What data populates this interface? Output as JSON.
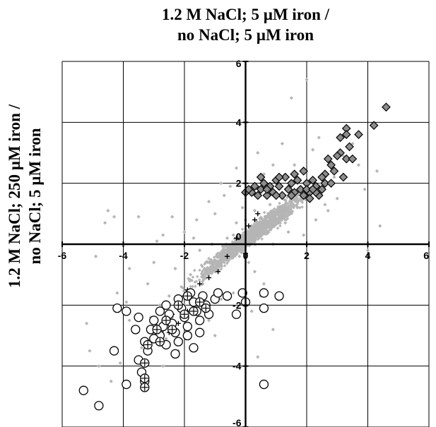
{
  "chart_data": {
    "type": "scatter",
    "title": [
      "1.2 M NaCl; 5 µM iron /",
      "no NaCl; 5 µM iron"
    ],
    "ylabel": [
      "1.2 M NaCl; 250 µM iron /",
      "no NaCl; 5 µM iron"
    ],
    "xlim": [
      -6,
      6
    ],
    "ylim": [
      -6,
      6
    ],
    "x_ticks": [
      "-6",
      "-4",
      "-2",
      "0",
      "2",
      "4",
      "6"
    ],
    "y_ticks": [
      "6",
      "4",
      "2",
      "0",
      "-2",
      "-4",
      "-6"
    ],
    "grid": true,
    "colors": {
      "background_cloud": "#b5b5b5",
      "diamond_fill": "#8c8c8c",
      "marker_stroke": "#000000"
    },
    "series": [
      {
        "marker": "small-gray-diamond",
        "points": [
          [
            -4.5,
            1.1
          ],
          [
            -4.3,
            0.9
          ],
          [
            -4.6,
            0.7
          ],
          [
            -3.5,
            0.9
          ],
          [
            -4.9,
            -0.4
          ],
          [
            -5.2,
            -2.6
          ],
          [
            -5.1,
            -3.5
          ],
          [
            -4.4,
            -4.5
          ],
          [
            -3.9,
            -4.7
          ],
          [
            -3.8,
            -2.5
          ],
          [
            -2.0,
            0.4
          ],
          [
            -1.6,
            0.8
          ],
          [
            -2.7,
            0.3
          ],
          [
            -3.0,
            -0.6
          ],
          [
            -2.4,
            0.9
          ],
          [
            -1.2,
            1.4
          ],
          [
            -0.7,
            1.6
          ],
          [
            -0.5,
            1.9
          ],
          [
            -0.3,
            2.5
          ],
          [
            -0.8,
            2.0
          ],
          [
            1.5,
            4.8
          ],
          [
            2.0,
            5.4
          ],
          [
            1.2,
            3.3
          ],
          [
            0.4,
            3.0
          ],
          [
            2.4,
            3.5
          ],
          [
            2.2,
            3.1
          ],
          [
            0.3,
            -0.9
          ],
          [
            0.6,
            -1.3
          ],
          [
            0.9,
            -2.8
          ],
          [
            0.4,
            -3.7
          ],
          [
            4.4,
            0.6
          ],
          [
            4.0,
            -0.2
          ],
          [
            0.8,
            1.3
          ],
          [
            1.1,
            0.9
          ],
          [
            0.2,
            0.2
          ],
          [
            -0.2,
            -0.4
          ],
          [
            -1.0,
            -0.9
          ],
          [
            -1.6,
            -2.6
          ],
          [
            -1.2,
            -2.5
          ],
          [
            -2.2,
            -3.5
          ],
          [
            -3.4,
            -3.4
          ],
          [
            1.5,
            1.1
          ],
          [
            1.8,
            1.5
          ],
          [
            2.5,
            2.0
          ],
          [
            2.9,
            2.2
          ],
          [
            1.0,
            1.7
          ],
          [
            0.6,
            2.3
          ],
          [
            0.5,
            0.5
          ],
          [
            -0.3,
            0.7
          ],
          [
            -0.6,
            0.2
          ],
          [
            -0.9,
            -0.3
          ],
          [
            -1.3,
            -0.6
          ],
          [
            -1.8,
            -1.0
          ],
          [
            -2.1,
            -1.4
          ],
          [
            -2.5,
            -1.7
          ],
          [
            -2.8,
            -2.0
          ],
          [
            -3.1,
            -2.4
          ],
          [
            -0.1,
            1.2
          ],
          [
            0.3,
            1.1
          ],
          [
            0.7,
            0.4
          ],
          [
            1.3,
            0.7
          ],
          [
            1.7,
            1.2
          ],
          [
            2.1,
            1.4
          ],
          [
            -1.5,
            -0.2
          ],
          [
            -2.3,
            -0.8
          ],
          [
            -3.2,
            -1.3
          ],
          [
            -1.7,
            0.2
          ],
          [
            -0.4,
            -1.6
          ],
          [
            0.1,
            -0.6
          ],
          [
            1.9,
            0.3
          ],
          [
            2.7,
            1.1
          ],
          [
            3.2,
            2.9
          ],
          [
            3.5,
            3.3
          ],
          [
            -0.8,
            -1.8
          ],
          [
            -1.9,
            -2.9
          ],
          [
            -2.6,
            -3.1
          ],
          [
            -2.9,
            -2.7
          ],
          [
            -3.6,
            -2.9
          ],
          [
            -1.1,
            0.0
          ],
          [
            0.0,
            0.8
          ],
          [
            0.4,
            1.6
          ],
          [
            1.1,
            2.2
          ],
          [
            1.6,
            2.6
          ],
          [
            -0.4,
            0.3
          ],
          [
            -0.7,
            -0.6
          ],
          [
            -1.4,
            -1.3
          ],
          [
            -2.0,
            -2.0
          ],
          [
            -2.4,
            -2.4
          ],
          [
            0.9,
            0.0
          ],
          [
            1.4,
            0.4
          ],
          [
            2.3,
            0.8
          ],
          [
            -4.8,
            -4.0
          ],
          [
            -4.1,
            -3.9
          ],
          [
            -3.3,
            -4.2
          ],
          [
            -2.7,
            -4.0
          ],
          [
            -1.0,
            -3.0
          ],
          [
            0.2,
            -2.2
          ],
          [
            0.5,
            -1.7
          ],
          [
            3.9,
            1.8
          ],
          [
            4.3,
            2.4
          ],
          [
            3.7,
            2.6
          ],
          [
            3.0,
            1.5
          ],
          [
            2.6,
            1.3
          ],
          [
            1.4,
            1.9
          ],
          [
            0.9,
            2.6
          ],
          [
            -0.2,
            2.0
          ],
          [
            -1.0,
            1.0
          ],
          [
            -2.9,
            0.1
          ],
          [
            -3.8,
            -0.8
          ],
          [
            -4.2,
            -1.6
          ],
          [
            -3.9,
            -1.9
          ]
        ]
      },
      {
        "marker": "gray-diamond-outlined",
        "points": [
          [
            4.6,
            4.5
          ],
          [
            3.3,
            3.8
          ],
          [
            3.3,
            3.6
          ],
          [
            3.7,
            3.6
          ],
          [
            3.1,
            3.5
          ],
          [
            3.4,
            3.2
          ],
          [
            3.1,
            3.0
          ],
          [
            3.3,
            2.8
          ],
          [
            3.0,
            2.9
          ],
          [
            2.8,
            2.6
          ],
          [
            2.9,
            2.4
          ],
          [
            2.7,
            2.8
          ],
          [
            2.6,
            2.3
          ],
          [
            2.6,
            2.0
          ],
          [
            2.5,
            2.2
          ],
          [
            2.4,
            1.6
          ],
          [
            2.3,
            1.9
          ],
          [
            2.2,
            2.1
          ],
          [
            2.1,
            1.7
          ],
          [
            2.0,
            2.0
          ],
          [
            1.9,
            2.4
          ],
          [
            1.8,
            1.8
          ],
          [
            1.7,
            2.1
          ],
          [
            1.6,
            1.7
          ],
          [
            1.5,
            2.0
          ],
          [
            1.4,
            1.8
          ],
          [
            1.3,
            2.2
          ],
          [
            1.2,
            1.6
          ],
          [
            1.1,
            1.9
          ],
          [
            1.0,
            2.1
          ],
          [
            0.9,
            1.7
          ],
          [
            0.8,
            1.9
          ],
          [
            0.7,
            1.6
          ],
          [
            0.6,
            2.0
          ],
          [
            0.5,
            1.8
          ],
          [
            0.4,
            1.6
          ],
          [
            0.3,
            1.9
          ],
          [
            0.2,
            1.7
          ],
          [
            0.0,
            1.7
          ],
          [
            1.0,
            1.6
          ],
          [
            1.9,
            1.6
          ],
          [
            2.1,
            1.5
          ],
          [
            2.3,
            1.7
          ],
          [
            1.5,
            1.6
          ],
          [
            1.6,
            2.3
          ],
          [
            1.1,
            2.2
          ],
          [
            0.7,
            1.8
          ],
          [
            2.0,
            1.8
          ],
          [
            2.8,
            2.0
          ],
          [
            2.5,
            1.8
          ],
          [
            4.2,
            3.9
          ],
          [
            3.5,
            2.8
          ],
          [
            3.2,
            2.2
          ],
          [
            2.2,
            1.8
          ],
          [
            0.5,
            2.2
          ],
          [
            0.1,
            1.8
          ]
        ]
      },
      {
        "marker": "plus",
        "points": [
          [
            0.4,
            1.0
          ],
          [
            0.3,
            0.8
          ],
          [
            0.1,
            0.6
          ],
          [
            -0.3,
            0.2
          ],
          [
            0.0,
            -0.3
          ],
          [
            -0.6,
            -0.4
          ],
          [
            -0.9,
            -0.9
          ],
          [
            -1.2,
            -1.1
          ],
          [
            -1.5,
            -1.3
          ],
          [
            -1.9,
            -1.5
          ],
          [
            -2.0,
            -1.7
          ],
          [
            -2.2,
            -2.0
          ],
          [
            -2.4,
            -2.3
          ],
          [
            -2.6,
            -2.5
          ],
          [
            -2.7,
            -2.8
          ],
          [
            -2.9,
            -2.7
          ],
          [
            -3.0,
            -3.1
          ],
          [
            -3.2,
            -3.4
          ],
          [
            -3.3,
            -3.9
          ],
          [
            -3.3,
            -4.5
          ],
          [
            -3.3,
            -4.7
          ],
          [
            -2.2,
            -2.6
          ],
          [
            -2.5,
            -2.9
          ],
          [
            -1.9,
            -2.2
          ]
        ]
      },
      {
        "marker": "open-circle",
        "points": [
          [
            -5.3,
            -4.8
          ],
          [
            -4.8,
            -5.3
          ],
          [
            -4.2,
            -2.1
          ],
          [
            -4.3,
            -3.5
          ],
          [
            -3.9,
            -2.2
          ],
          [
            -3.9,
            -4.6
          ],
          [
            -3.5,
            -2.4
          ],
          [
            -3.5,
            -3.8
          ],
          [
            -3.4,
            -4.2
          ],
          [
            -3.3,
            -4.5
          ],
          [
            -3.3,
            -3.2
          ],
          [
            -3.2,
            -3.5
          ],
          [
            -3.1,
            -2.8
          ],
          [
            -3.0,
            -2.5
          ],
          [
            -2.8,
            -3.0
          ],
          [
            -2.7,
            -2.7
          ],
          [
            -2.6,
            -2.0
          ],
          [
            -2.5,
            -2.3
          ],
          [
            -2.4,
            -2.6
          ],
          [
            -2.3,
            -2.9
          ],
          [
            -2.2,
            -1.8
          ],
          [
            -2.1,
            -2.1
          ],
          [
            -2.0,
            -2.4
          ],
          [
            -1.9,
            -2.7
          ],
          [
            -1.8,
            -1.6
          ],
          [
            -1.7,
            -1.9
          ],
          [
            -1.6,
            -2.2
          ],
          [
            -1.5,
            -2.5
          ],
          [
            -1.4,
            -1.7
          ],
          [
            -1.3,
            -2.0
          ],
          [
            -1.2,
            -2.3
          ],
          [
            -1.0,
            -1.8
          ],
          [
            -0.9,
            -1.6
          ],
          [
            -0.6,
            -1.7
          ],
          [
            -0.3,
            -2.3
          ],
          [
            -3.0,
            -3.1
          ],
          [
            -2.8,
            -2.2
          ],
          [
            -2.2,
            -3.2
          ],
          [
            -1.9,
            -3.0
          ],
          [
            -1.7,
            -3.4
          ],
          [
            -2.3,
            -3.6
          ],
          [
            -0.1,
            -1.6
          ],
          [
            0.0,
            -1.9
          ],
          [
            0.6,
            -1.6
          ],
          [
            1.1,
            -1.7
          ],
          [
            0.6,
            -2.1
          ],
          [
            0.6,
            -4.6
          ],
          [
            -3.6,
            -2.8
          ],
          [
            -2.6,
            -3.3
          ],
          [
            -1.5,
            -2.9
          ]
        ]
      },
      {
        "marker": "circle-plus",
        "points": [
          [
            -3.3,
            -4.7
          ],
          [
            -3.3,
            -4.4
          ],
          [
            -3.3,
            -3.9
          ],
          [
            -3.2,
            -3.3
          ],
          [
            -2.9,
            -2.8
          ],
          [
            -2.8,
            -3.2
          ],
          [
            -2.6,
            -2.5
          ],
          [
            -2.4,
            -2.8
          ],
          [
            -2.2,
            -2.0
          ],
          [
            -2.0,
            -2.3
          ],
          [
            -1.9,
            -1.7
          ],
          [
            -1.7,
            -2.2
          ],
          [
            -1.5,
            -1.9
          ],
          [
            -1.3,
            -2.1
          ]
        ]
      }
    ]
  }
}
